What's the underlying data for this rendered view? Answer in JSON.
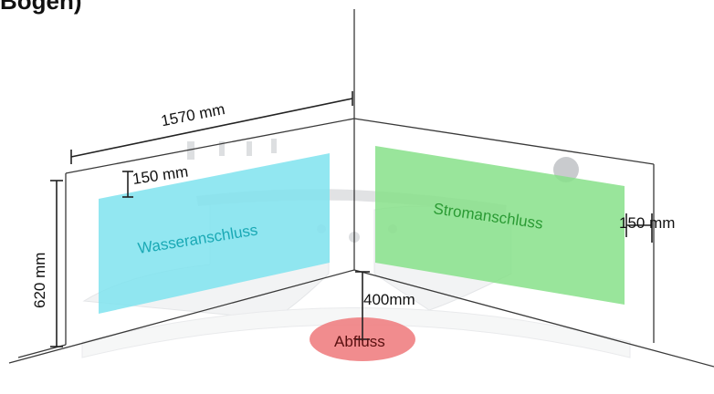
{
  "heading": "Bogen)",
  "dimensions": {
    "top_width": "1570 mm",
    "left_height": "620 mm",
    "left_offset": "150 mm",
    "right_offset": "150 mm",
    "drain_offset": "400mm"
  },
  "zones": {
    "water": "Wasseranschluss",
    "power": "Stromanschluss",
    "drain": "Abfluss"
  },
  "colors": {
    "water": "#7fe3ee",
    "power": "#87e08a",
    "drain": "#ef7f82",
    "water_text": "#1aa9b5",
    "power_text": "#2a9a33"
  }
}
